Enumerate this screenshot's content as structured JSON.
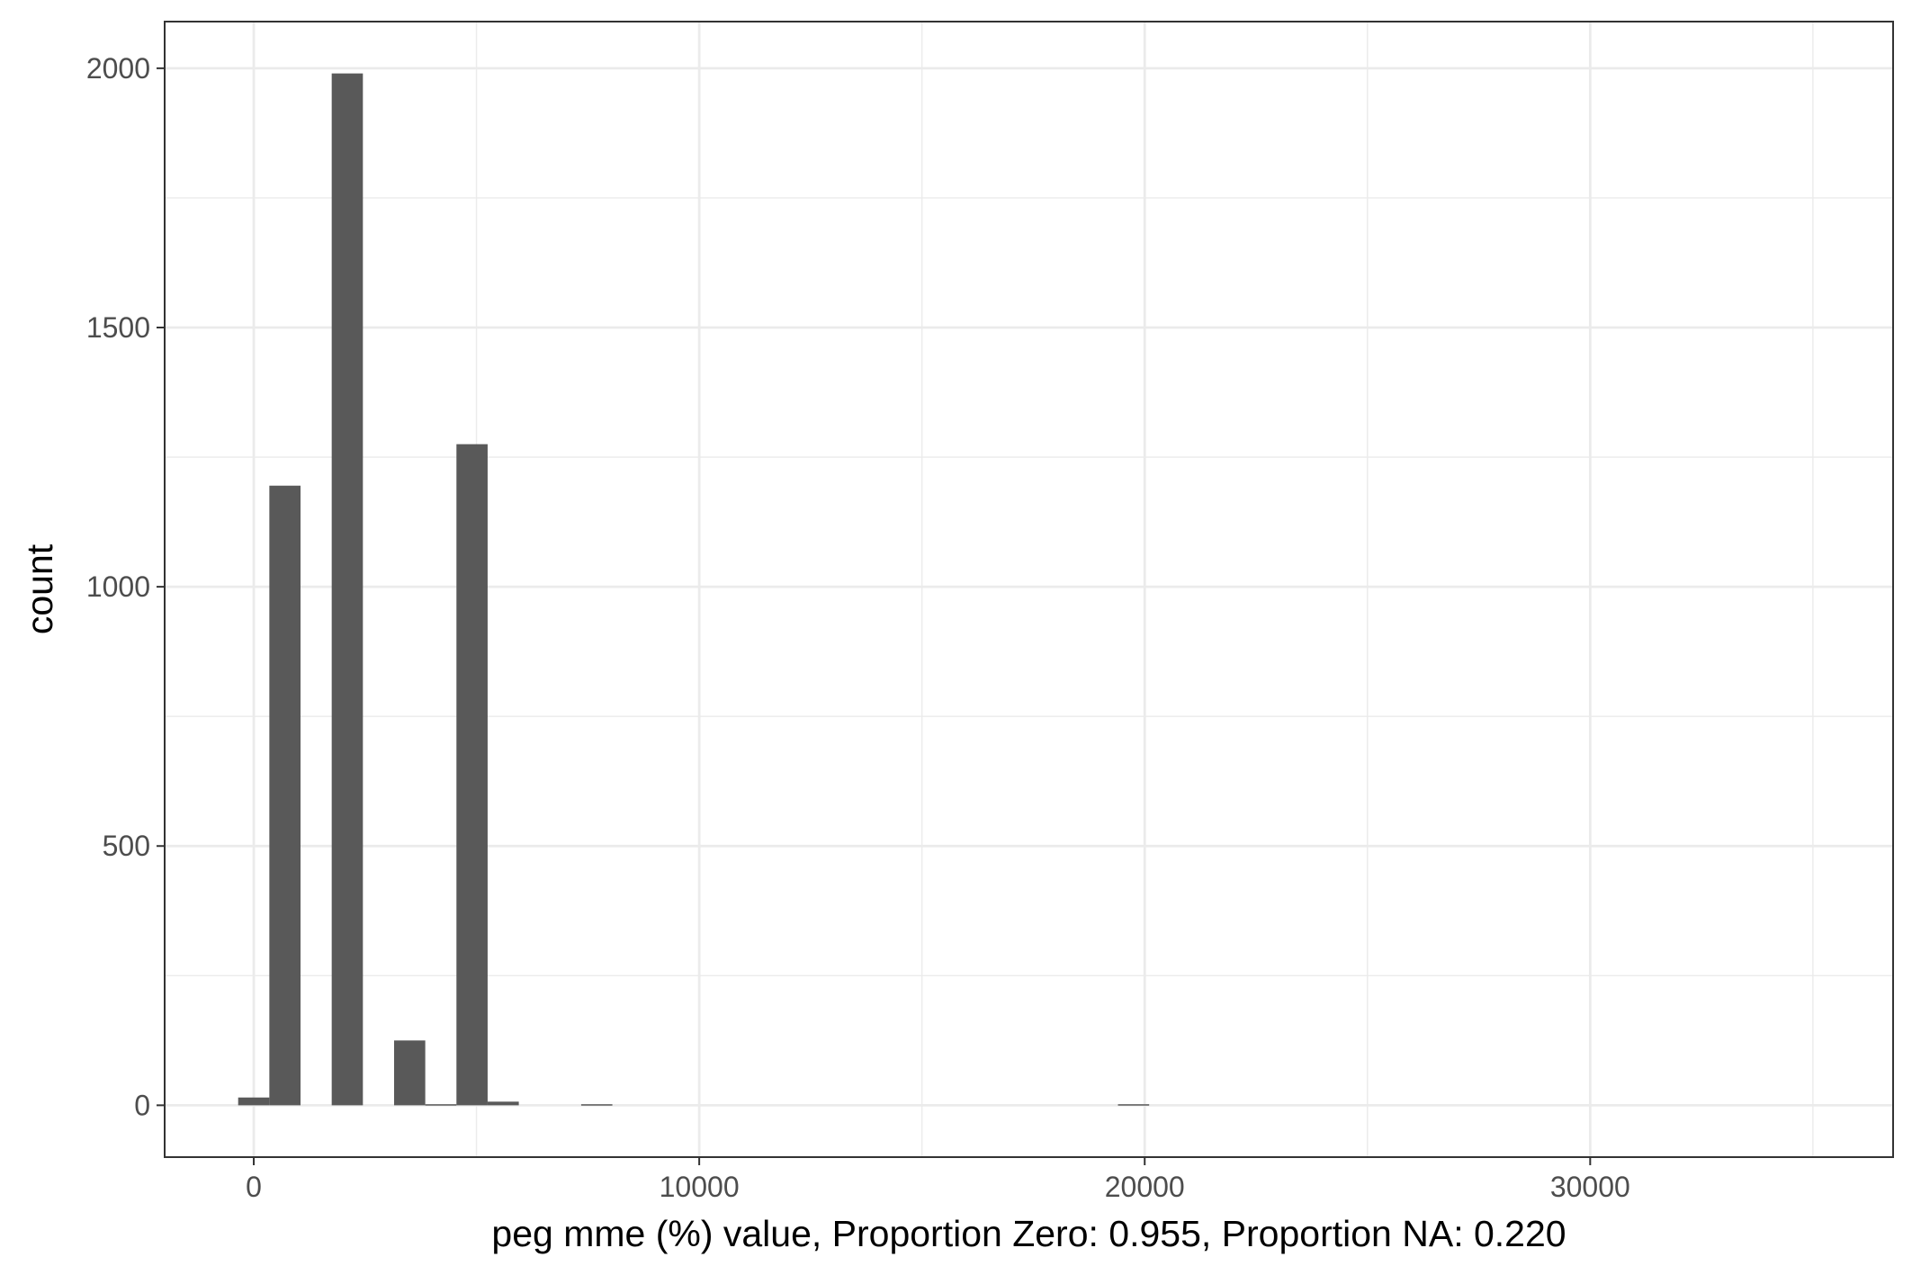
{
  "chart_data": {
    "type": "bar",
    "xlabel": "peg mme (%) value, Proportion Zero: 0.955, Proportion NA: 0.220",
    "ylabel": "count",
    "xlim": [
      -2000,
      36800
    ],
    "ylim": [
      -100,
      2090
    ],
    "x_ticks": [
      0,
      10000,
      20000,
      30000
    ],
    "y_ticks": [
      0,
      500,
      1000,
      1500,
      2000
    ],
    "bin_width": 700,
    "grid": true,
    "bars": [
      {
        "x": 0,
        "count": 15
      },
      {
        "x": 700,
        "count": 1195
      },
      {
        "x": 2100,
        "count": 1990
      },
      {
        "x": 3500,
        "count": 125
      },
      {
        "x": 4200,
        "count": 2
      },
      {
        "x": 4900,
        "count": 1275
      },
      {
        "x": 5600,
        "count": 7
      },
      {
        "x": 7700,
        "count": 2
      },
      {
        "x": 19750,
        "count": 2
      }
    ],
    "colors": {
      "bar": "#595959",
      "grid": "#ebebeb",
      "panel_border": "#333333"
    }
  }
}
